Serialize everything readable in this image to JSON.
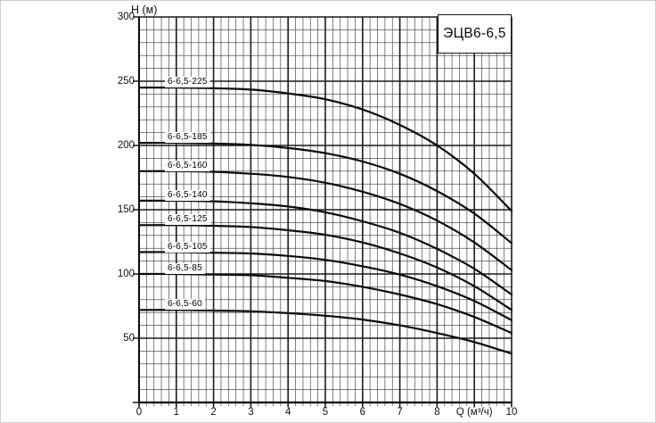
{
  "chart_data": {
    "type": "line",
    "title": "ЭЦВ6-6,5",
    "ylabel": "H (м)",
    "xlabel": "Q (м³/ч)",
    "xlim": [
      0,
      10
    ],
    "ylim": [
      0,
      300
    ],
    "x_major_step": 1,
    "x_minor_step": 0.2,
    "y_major_step": 50,
    "y_minor_step": 10,
    "grid": "minor-and-major",
    "legend_position": "labels-on-curves",
    "x_tick_labels": [
      "0",
      "1",
      "2",
      "3",
      "4",
      "5",
      "6",
      "7",
      "8",
      "Q (м³/ч)",
      "10"
    ],
    "y_tick_values": [
      300,
      250,
      200,
      150,
      100,
      50
    ],
    "x": [
      0,
      1,
      2,
      3,
      4,
      5,
      6,
      7,
      8,
      9,
      10
    ],
    "series": [
      {
        "name": "6-6,5-225",
        "values": [
          245,
          245,
          244.5,
          243.5,
          240.5,
          236,
          228,
          216,
          200,
          178,
          149
        ]
      },
      {
        "name": "6-6,5-185",
        "values": [
          202,
          202,
          201.5,
          200.5,
          198,
          194,
          187.5,
          178,
          164.5,
          147,
          124
        ]
      },
      {
        "name": "6-6,5-160",
        "values": [
          180,
          180,
          179.5,
          178,
          175.5,
          171,
          164,
          154.5,
          141.5,
          124.5,
          103
        ]
      },
      {
        "name": "6-6,5-140",
        "values": [
          157,
          157,
          156.5,
          155,
          152.5,
          148,
          141,
          132,
          119.5,
          104,
          84
        ]
      },
      {
        "name": "6-6,5-125",
        "values": [
          138,
          138,
          137.5,
          136.5,
          134,
          130.5,
          124.5,
          116,
          105,
          90.5,
          72
        ]
      },
      {
        "name": "6-6,5-105",
        "values": [
          117,
          117,
          116.5,
          116,
          114,
          111,
          106,
          99.5,
          90.5,
          79,
          64
        ]
      },
      {
        "name": "6-6,5-85",
        "values": [
          100,
          100,
          99.5,
          99,
          97,
          94.5,
          90,
          84,
          76.5,
          66.5,
          54
        ]
      },
      {
        "name": "6-6,5-60",
        "values": [
          72,
          72,
          71.5,
          71,
          69.5,
          67.5,
          64.5,
          60,
          54,
          47,
          38
        ]
      }
    ],
    "colors": {
      "curve": "#0b0b0b",
      "grid_minor": "#555555",
      "grid_major": "#1a1a1a",
      "background": "#ffffff",
      "frame": "#d0d0d0"
    }
  }
}
